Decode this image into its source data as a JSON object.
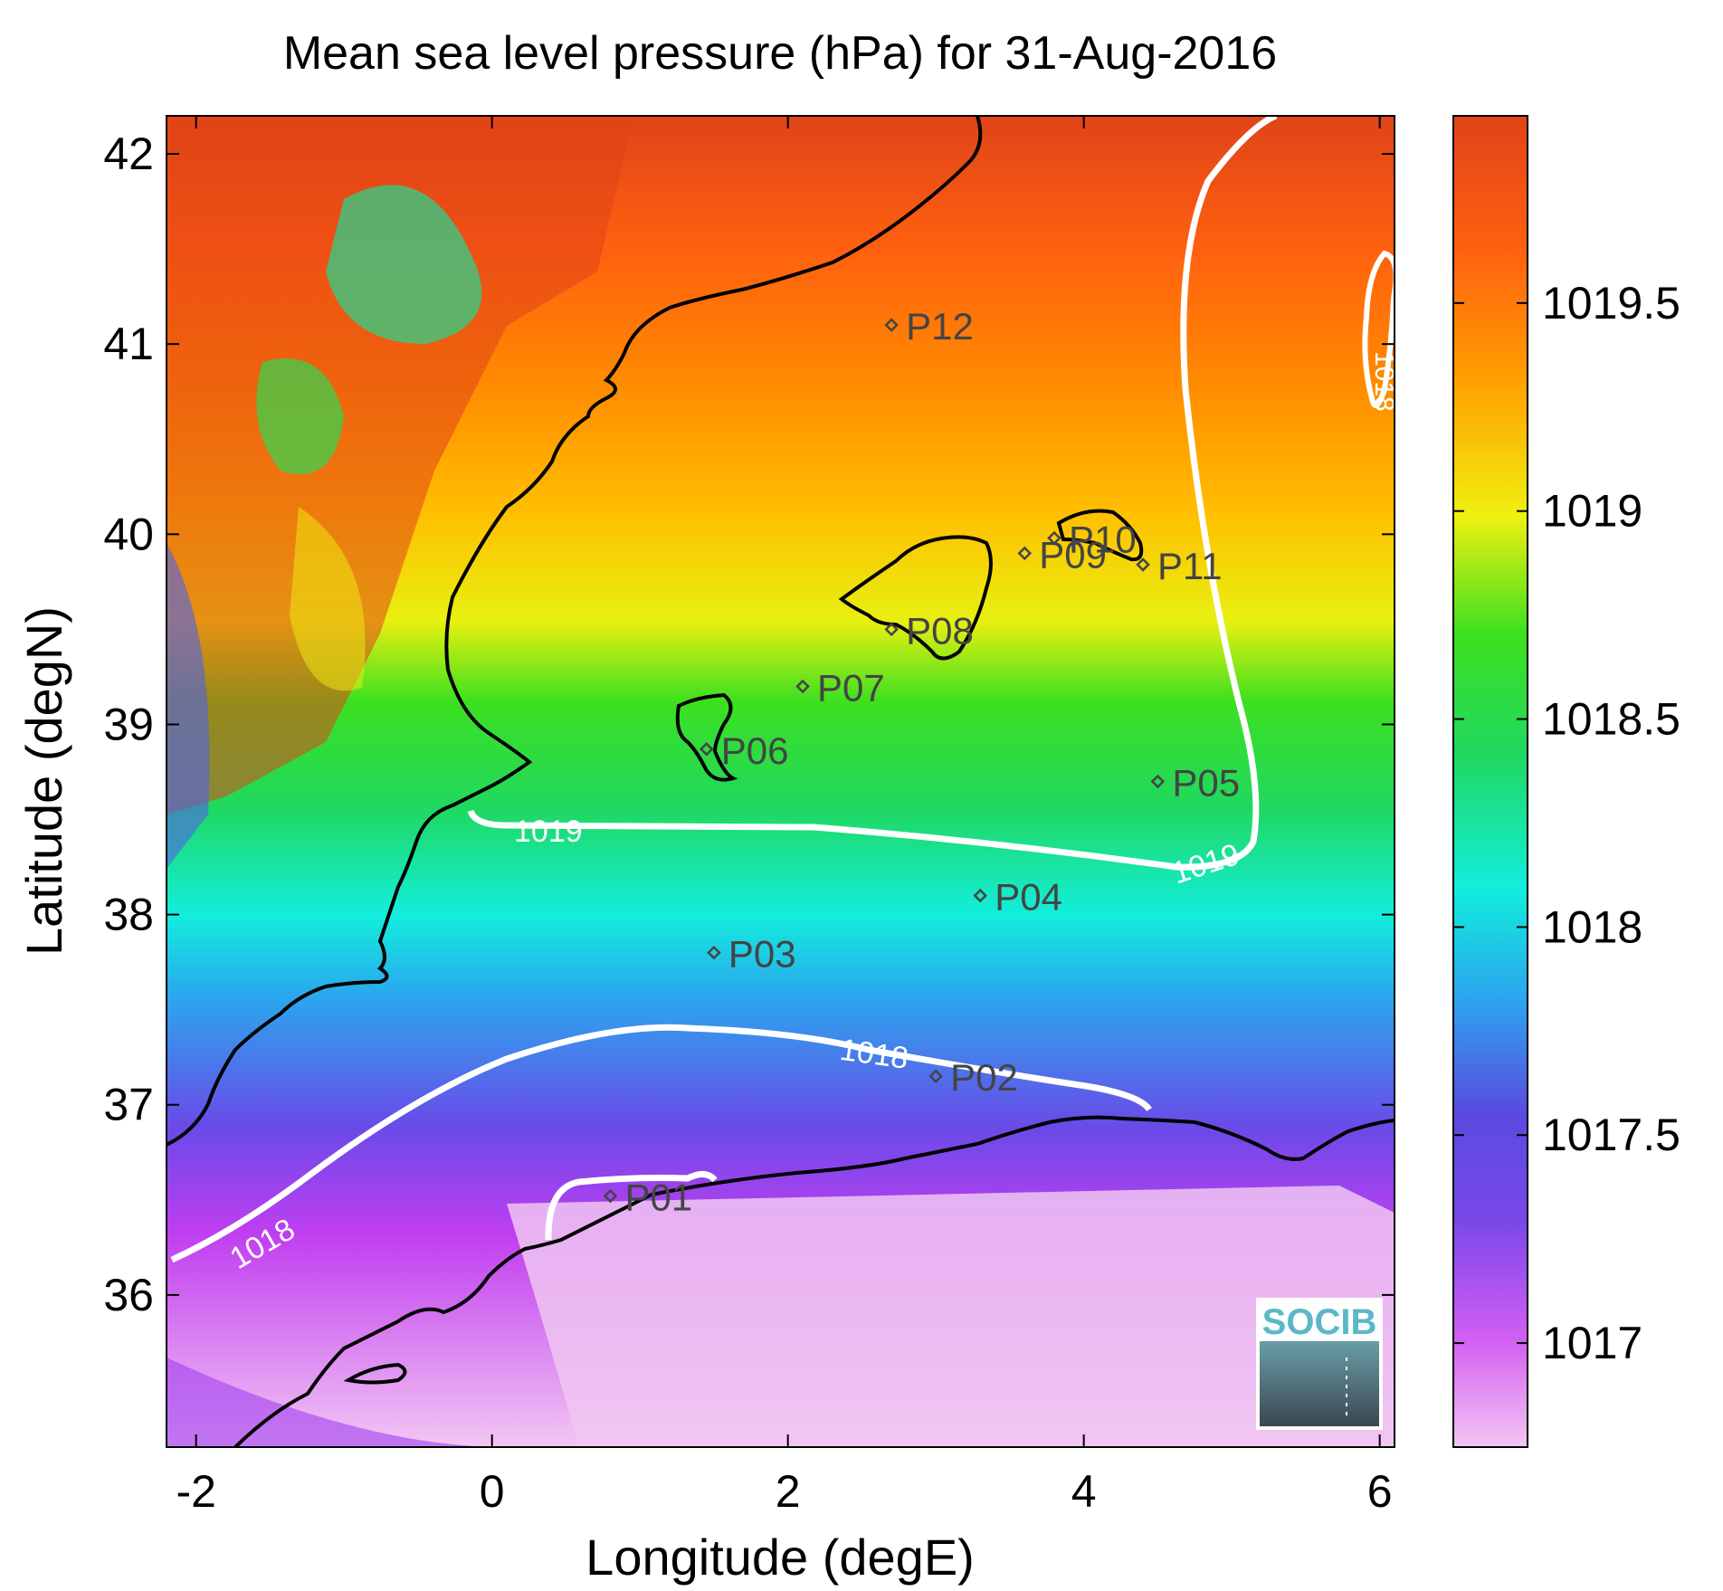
{
  "title": "Mean sea level pressure (hPa) for 31-Aug-2016",
  "x_axis": {
    "label": "Longitude (degE)",
    "range": [
      -2.2,
      6.1
    ],
    "ticks": [
      -2,
      0,
      2,
      4,
      6
    ]
  },
  "y_axis": {
    "label": "Latitude (degN)",
    "range": [
      35.2,
      42.2
    ],
    "ticks": [
      36,
      37,
      38,
      39,
      40,
      41,
      42
    ]
  },
  "colorbar": {
    "range": [
      1016.75,
      1019.95
    ],
    "ticks": [
      "1017",
      "1017.5",
      "1018",
      "1018.5",
      "1019",
      "1019.5"
    ],
    "colors": [
      "#f3c6f3",
      "#c03ef0",
      "#5a4ae0",
      "#2aa8ee",
      "#12eedd",
      "#20d860",
      "#3ce020",
      "#f0f010",
      "#ffa000",
      "#ff6010",
      "#e04418"
    ]
  },
  "contours": [
    {
      "label": "1019",
      "label_positions": [
        [
          0.3,
          38.42
        ],
        [
          4.1,
          38.24
        ]
      ]
    },
    {
      "label": "1018",
      "label_positions": [
        [
          -1.6,
          36.25
        ],
        [
          2.5,
          37.1
        ],
        [
          5.9,
          40.7
        ]
      ]
    }
  ],
  "stations": [
    {
      "id": "P01",
      "lon": 0.8,
      "lat": 36.52
    },
    {
      "id": "P02",
      "lon": 3.0,
      "lat": 37.15
    },
    {
      "id": "P03",
      "lon": 1.5,
      "lat": 37.8
    },
    {
      "id": "P04",
      "lon": 3.3,
      "lat": 38.1
    },
    {
      "id": "P05",
      "lon": 4.5,
      "lat": 38.7
    },
    {
      "id": "P06",
      "lon": 1.45,
      "lat": 38.87
    },
    {
      "id": "P07",
      "lon": 2.1,
      "lat": 39.2
    },
    {
      "id": "P08",
      "lon": 2.7,
      "lat": 39.5
    },
    {
      "id": "P09",
      "lon": 3.6,
      "lat": 39.9
    },
    {
      "id": "P10",
      "lon": 3.8,
      "lat": 39.98
    },
    {
      "id": "P11",
      "lon": 4.4,
      "lat": 39.84
    },
    {
      "id": "P12",
      "lon": 2.7,
      "lat": 41.1
    }
  ],
  "logo": {
    "text": "SOCIB"
  }
}
